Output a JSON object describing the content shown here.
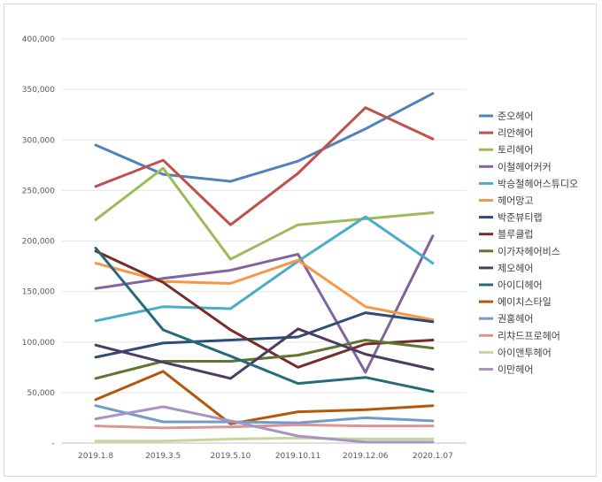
{
  "chart_data": {
    "type": "line",
    "title": "",
    "xlabel": "",
    "ylabel": "",
    "ylim": [
      0,
      400000
    ],
    "yticks": [
      0,
      50000,
      100000,
      150000,
      200000,
      250000,
      300000,
      350000,
      400000
    ],
    "ytick_labels": [
      "-",
      "50,000",
      "100,000",
      "150,000",
      "200,000",
      "250,000",
      "300,000",
      "350,000",
      "400,000"
    ],
    "categories": [
      "2019.1.8",
      "2019.3.5",
      "2019.5.10",
      "2019.10.11",
      "2019.12.06",
      "2020.1.07"
    ],
    "grid": true,
    "legend_position": "right",
    "series": [
      {
        "name": "준오헤어",
        "color": "#4f81bd",
        "values": [
          295000,
          266000,
          259000,
          279000,
          311000,
          346000
        ]
      },
      {
        "name": "리안헤어",
        "color": "#c0504d",
        "values": [
          254000,
          280000,
          216000,
          267000,
          332000,
          301000
        ]
      },
      {
        "name": "토리헤어",
        "color": "#9bbb59",
        "values": [
          221000,
          272000,
          182000,
          216000,
          222000,
          228000
        ]
      },
      {
        "name": "이철헤어커커",
        "color": "#8064a2",
        "values": [
          153000,
          163000,
          171000,
          187000,
          70000,
          205000
        ]
      },
      {
        "name": "박승철헤어스튜디오",
        "color": "#4bacc6",
        "values": [
          121000,
          135000,
          133000,
          180000,
          224000,
          178000
        ]
      },
      {
        "name": "헤어망고",
        "color": "#f79646",
        "values": [
          178000,
          160000,
          158000,
          181000,
          135000,
          122000
        ]
      },
      {
        "name": "박준뷰티랩",
        "color": "#2c4d75",
        "values": [
          85000,
          99000,
          102000,
          105000,
          129000,
          120000
        ]
      },
      {
        "name": "블루클럽",
        "color": "#772c2a",
        "values": [
          190000,
          159000,
          112000,
          75000,
          98000,
          102000
        ]
      },
      {
        "name": "이가자헤어비스",
        "color": "#5f7530",
        "values": [
          64000,
          81000,
          81000,
          87000,
          102000,
          94000
        ]
      },
      {
        "name": "제오헤어",
        "color": "#4d3b62",
        "values": [
          97000,
          80000,
          64000,
          113000,
          88000,
          73000
        ]
      },
      {
        "name": "아이디헤어",
        "color": "#276a7c",
        "values": [
          193000,
          112000,
          86000,
          59000,
          65000,
          51000
        ]
      },
      {
        "name": "에이치스타일",
        "color": "#b65708",
        "values": [
          43000,
          71000,
          19000,
          31000,
          33000,
          37000
        ]
      },
      {
        "name": "권홍헤어",
        "color": "#729aca",
        "values": [
          37000,
          21000,
          21000,
          20000,
          25000,
          22000
        ]
      },
      {
        "name": "리챠드프로헤어",
        "color": "#d99694",
        "values": [
          17000,
          15000,
          16000,
          18000,
          17000,
          17000
        ]
      },
      {
        "name": "아이앤투헤어",
        "color": "#c3d69b",
        "values": [
          2000,
          2000,
          4000,
          5000,
          4000,
          4000
        ]
      },
      {
        "name": "이만헤어",
        "color": "#a993c4",
        "values": [
          24000,
          36000,
          22000,
          7000,
          1000,
          1000
        ]
      }
    ]
  }
}
